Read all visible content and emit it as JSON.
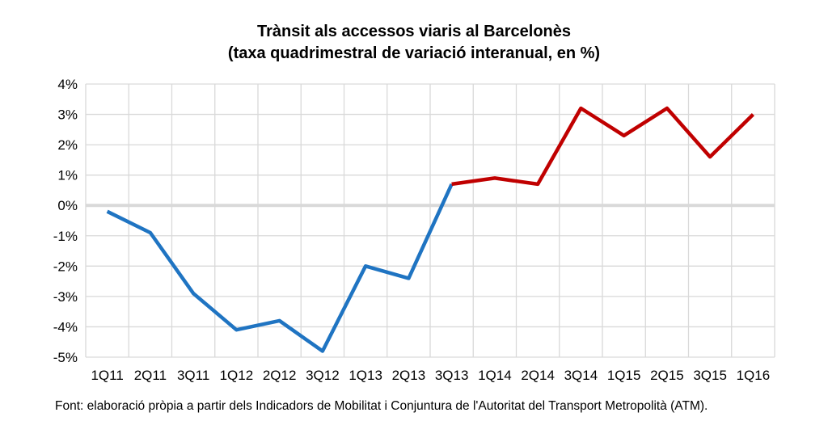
{
  "chart_data": {
    "type": "line",
    "title": "Trànsit als accessos viaris al Barcelonès",
    "subtitle": "(taxa quadrimestral de variació interanual, en %)",
    "categories": [
      "1Q11",
      "2Q11",
      "3Q11",
      "1Q12",
      "2Q12",
      "3Q12",
      "1Q13",
      "2Q13",
      "3Q13",
      "1Q14",
      "2Q14",
      "3Q14",
      "1Q15",
      "2Q15",
      "3Q15",
      "1Q16"
    ],
    "series": [
      {
        "color": "#1f74c2",
        "values": [
          -0.2,
          -0.9,
          -2.9,
          -4.1,
          -3.8,
          -4.8,
          -2.0,
          -2.4,
          0.7,
          null,
          null,
          null,
          null,
          null,
          null,
          null
        ]
      },
      {
        "color": "#c00000",
        "values": [
          null,
          null,
          null,
          null,
          null,
          null,
          null,
          null,
          0.7,
          0.9,
          0.7,
          3.2,
          2.3,
          3.2,
          1.6,
          3.0
        ]
      }
    ],
    "ylim": [
      -5,
      4
    ],
    "yticks": [
      4,
      3,
      2,
      1,
      0,
      -1,
      -2,
      -3,
      -4,
      -5
    ],
    "ytick_labels": [
      "4%",
      "3%",
      "2%",
      "1%",
      "0%",
      "-1%",
      "-2%",
      "-3%",
      "-4%",
      "-5%"
    ],
    "xlabel": "",
    "ylabel": "",
    "grid": true,
    "legend": "none",
    "zero_line_color": "#d9d9d9",
    "gridline_color": "#d9d9d9"
  },
  "source": "Font: elaboració pròpia a partir dels Indicadors de Mobilitat i Conjuntura de l'Autoritat del Transport Metropolità (ATM)."
}
